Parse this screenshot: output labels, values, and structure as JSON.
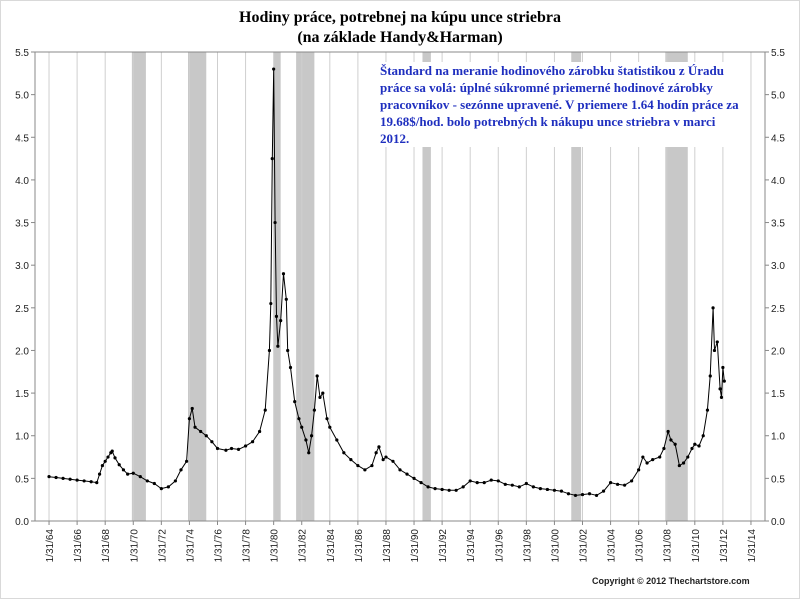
{
  "chart_data": {
    "type": "line",
    "title": "Hodiny práce, potrebnej na kúpu unce striebra",
    "subtitle": "(na základe Handy&Harman)",
    "xlabel": "",
    "ylabel": "",
    "ylim": [
      0,
      5.5
    ],
    "yticks": [
      "0.0",
      "0.5",
      "1.0",
      "1.5",
      "2.0",
      "2.5",
      "3.0",
      "3.5",
      "4.0",
      "4.5",
      "5.0",
      "5.5"
    ],
    "xlim": [
      1963.0,
      2015.0
    ],
    "xtick_labels": [
      "1/31/64",
      "1/31/66",
      "1/31/68",
      "1/31/70",
      "1/31/72",
      "1/31/74",
      "1/31/76",
      "1/31/78",
      "1/31/80",
      "1/31/82",
      "1/31/84",
      "1/31/86",
      "1/31/88",
      "1/31/90",
      "1/31/92",
      "1/31/94",
      "1/31/96",
      "1/31/98",
      "1/31/00",
      "1/31/02",
      "1/31/04",
      "1/31/06",
      "1/31/08",
      "1/31/10",
      "1/31/12",
      "1/31/14"
    ],
    "xtick_years": [
      1964,
      1966,
      1968,
      1970,
      1972,
      1974,
      1976,
      1978,
      1980,
      1982,
      1984,
      1986,
      1988,
      1990,
      1992,
      1994,
      1996,
      1998,
      2000,
      2002,
      2004,
      2006,
      2008,
      2010,
      2012,
      2014
    ],
    "grid": "vertical",
    "right_axis": true,
    "recession_bands": [
      [
        1969.9,
        1970.9
      ],
      [
        1973.9,
        1975.2
      ],
      [
        1980.0,
        1980.5
      ],
      [
        1981.6,
        1982.9
      ],
      [
        1990.6,
        1991.2
      ],
      [
        2001.2,
        2001.9
      ],
      [
        2007.9,
        2009.5
      ]
    ],
    "series": [
      {
        "color": "#000000",
        "points": [
          [
            1964.0,
            0.52
          ],
          [
            1964.5,
            0.51
          ],
          [
            1965.0,
            0.5
          ],
          [
            1965.5,
            0.49
          ],
          [
            1966.0,
            0.48
          ],
          [
            1966.5,
            0.47
          ],
          [
            1967.0,
            0.46
          ],
          [
            1967.4,
            0.45
          ],
          [
            1967.6,
            0.55
          ],
          [
            1967.8,
            0.65
          ],
          [
            1968.0,
            0.7
          ],
          [
            1968.2,
            0.75
          ],
          [
            1968.4,
            0.8
          ],
          [
            1968.5,
            0.82
          ],
          [
            1968.7,
            0.74
          ],
          [
            1969.0,
            0.66
          ],
          [
            1969.3,
            0.6
          ],
          [
            1969.6,
            0.55
          ],
          [
            1970.0,
            0.56
          ],
          [
            1970.5,
            0.52
          ],
          [
            1971.0,
            0.47
          ],
          [
            1971.5,
            0.44
          ],
          [
            1972.0,
            0.38
          ],
          [
            1972.5,
            0.4
          ],
          [
            1973.0,
            0.47
          ],
          [
            1973.4,
            0.6
          ],
          [
            1973.8,
            0.7
          ],
          [
            1974.0,
            1.2
          ],
          [
            1974.2,
            1.32
          ],
          [
            1974.4,
            1.1
          ],
          [
            1974.8,
            1.05
          ],
          [
            1975.2,
            1.0
          ],
          [
            1975.6,
            0.93
          ],
          [
            1976.0,
            0.85
          ],
          [
            1976.6,
            0.83
          ],
          [
            1977.0,
            0.85
          ],
          [
            1977.5,
            0.84
          ],
          [
            1978.0,
            0.88
          ],
          [
            1978.5,
            0.93
          ],
          [
            1979.0,
            1.05
          ],
          [
            1979.4,
            1.3
          ],
          [
            1979.7,
            2.0
          ],
          [
            1979.8,
            2.55
          ],
          [
            1979.9,
            4.25
          ],
          [
            1980.0,
            5.3
          ],
          [
            1980.1,
            3.5
          ],
          [
            1980.2,
            2.4
          ],
          [
            1980.3,
            2.05
          ],
          [
            1980.5,
            2.35
          ],
          [
            1980.7,
            2.9
          ],
          [
            1980.9,
            2.6
          ],
          [
            1981.0,
            2.0
          ],
          [
            1981.2,
            1.8
          ],
          [
            1981.5,
            1.4
          ],
          [
            1981.8,
            1.2
          ],
          [
            1982.0,
            1.1
          ],
          [
            1982.3,
            0.95
          ],
          [
            1982.5,
            0.8
          ],
          [
            1982.7,
            1.0
          ],
          [
            1982.9,
            1.3
          ],
          [
            1983.1,
            1.7
          ],
          [
            1983.3,
            1.45
          ],
          [
            1983.5,
            1.5
          ],
          [
            1983.8,
            1.2
          ],
          [
            1984.0,
            1.1
          ],
          [
            1984.5,
            0.95
          ],
          [
            1985.0,
            0.8
          ],
          [
            1985.5,
            0.72
          ],
          [
            1986.0,
            0.65
          ],
          [
            1986.5,
            0.6
          ],
          [
            1987.0,
            0.65
          ],
          [
            1987.3,
            0.8
          ],
          [
            1987.5,
            0.87
          ],
          [
            1987.8,
            0.72
          ],
          [
            1988.0,
            0.75
          ],
          [
            1988.5,
            0.7
          ],
          [
            1989.0,
            0.6
          ],
          [
            1989.5,
            0.55
          ],
          [
            1990.0,
            0.5
          ],
          [
            1990.5,
            0.45
          ],
          [
            1991.0,
            0.4
          ],
          [
            1991.5,
            0.38
          ],
          [
            1992.0,
            0.37
          ],
          [
            1992.5,
            0.36
          ],
          [
            1993.0,
            0.36
          ],
          [
            1993.5,
            0.4
          ],
          [
            1994.0,
            0.47
          ],
          [
            1994.5,
            0.45
          ],
          [
            1995.0,
            0.45
          ],
          [
            1995.5,
            0.48
          ],
          [
            1996.0,
            0.47
          ],
          [
            1996.5,
            0.43
          ],
          [
            1997.0,
            0.42
          ],
          [
            1997.5,
            0.4
          ],
          [
            1998.0,
            0.44
          ],
          [
            1998.5,
            0.4
          ],
          [
            1999.0,
            0.38
          ],
          [
            1999.5,
            0.37
          ],
          [
            2000.0,
            0.36
          ],
          [
            2000.5,
            0.35
          ],
          [
            2001.0,
            0.32
          ],
          [
            2001.5,
            0.3
          ],
          [
            2002.0,
            0.31
          ],
          [
            2002.5,
            0.32
          ],
          [
            2003.0,
            0.3
          ],
          [
            2003.5,
            0.35
          ],
          [
            2004.0,
            0.45
          ],
          [
            2004.5,
            0.43
          ],
          [
            2005.0,
            0.42
          ],
          [
            2005.5,
            0.47
          ],
          [
            2006.0,
            0.6
          ],
          [
            2006.3,
            0.75
          ],
          [
            2006.6,
            0.68
          ],
          [
            2007.0,
            0.72
          ],
          [
            2007.5,
            0.75
          ],
          [
            2007.8,
            0.85
          ],
          [
            2008.1,
            1.05
          ],
          [
            2008.3,
            0.95
          ],
          [
            2008.6,
            0.9
          ],
          [
            2008.9,
            0.65
          ],
          [
            2009.2,
            0.68
          ],
          [
            2009.5,
            0.75
          ],
          [
            2009.8,
            0.85
          ],
          [
            2010.0,
            0.9
          ],
          [
            2010.3,
            0.88
          ],
          [
            2010.6,
            1.0
          ],
          [
            2010.9,
            1.3
          ],
          [
            2011.1,
            1.7
          ],
          [
            2011.3,
            2.5
          ],
          [
            2011.4,
            2.0
          ],
          [
            2011.6,
            2.1
          ],
          [
            2011.8,
            1.55
          ],
          [
            2011.9,
            1.45
          ],
          [
            2012.0,
            1.8
          ],
          [
            2012.1,
            1.64
          ]
        ]
      }
    ],
    "note": "Štandard na meranie hodinového zárobku štatistikou z Úradu práce sa volá: úplné súkromné priemerné hodinové zárobky pracovníkov - sezónne upravené. V priemere 1.64 hodín práce za 19.68$/hod. bolo potrebných k nákupu unce striebra v marci 2012.",
    "copyright": "Copyright © 2012 Thechartstore.com"
  }
}
